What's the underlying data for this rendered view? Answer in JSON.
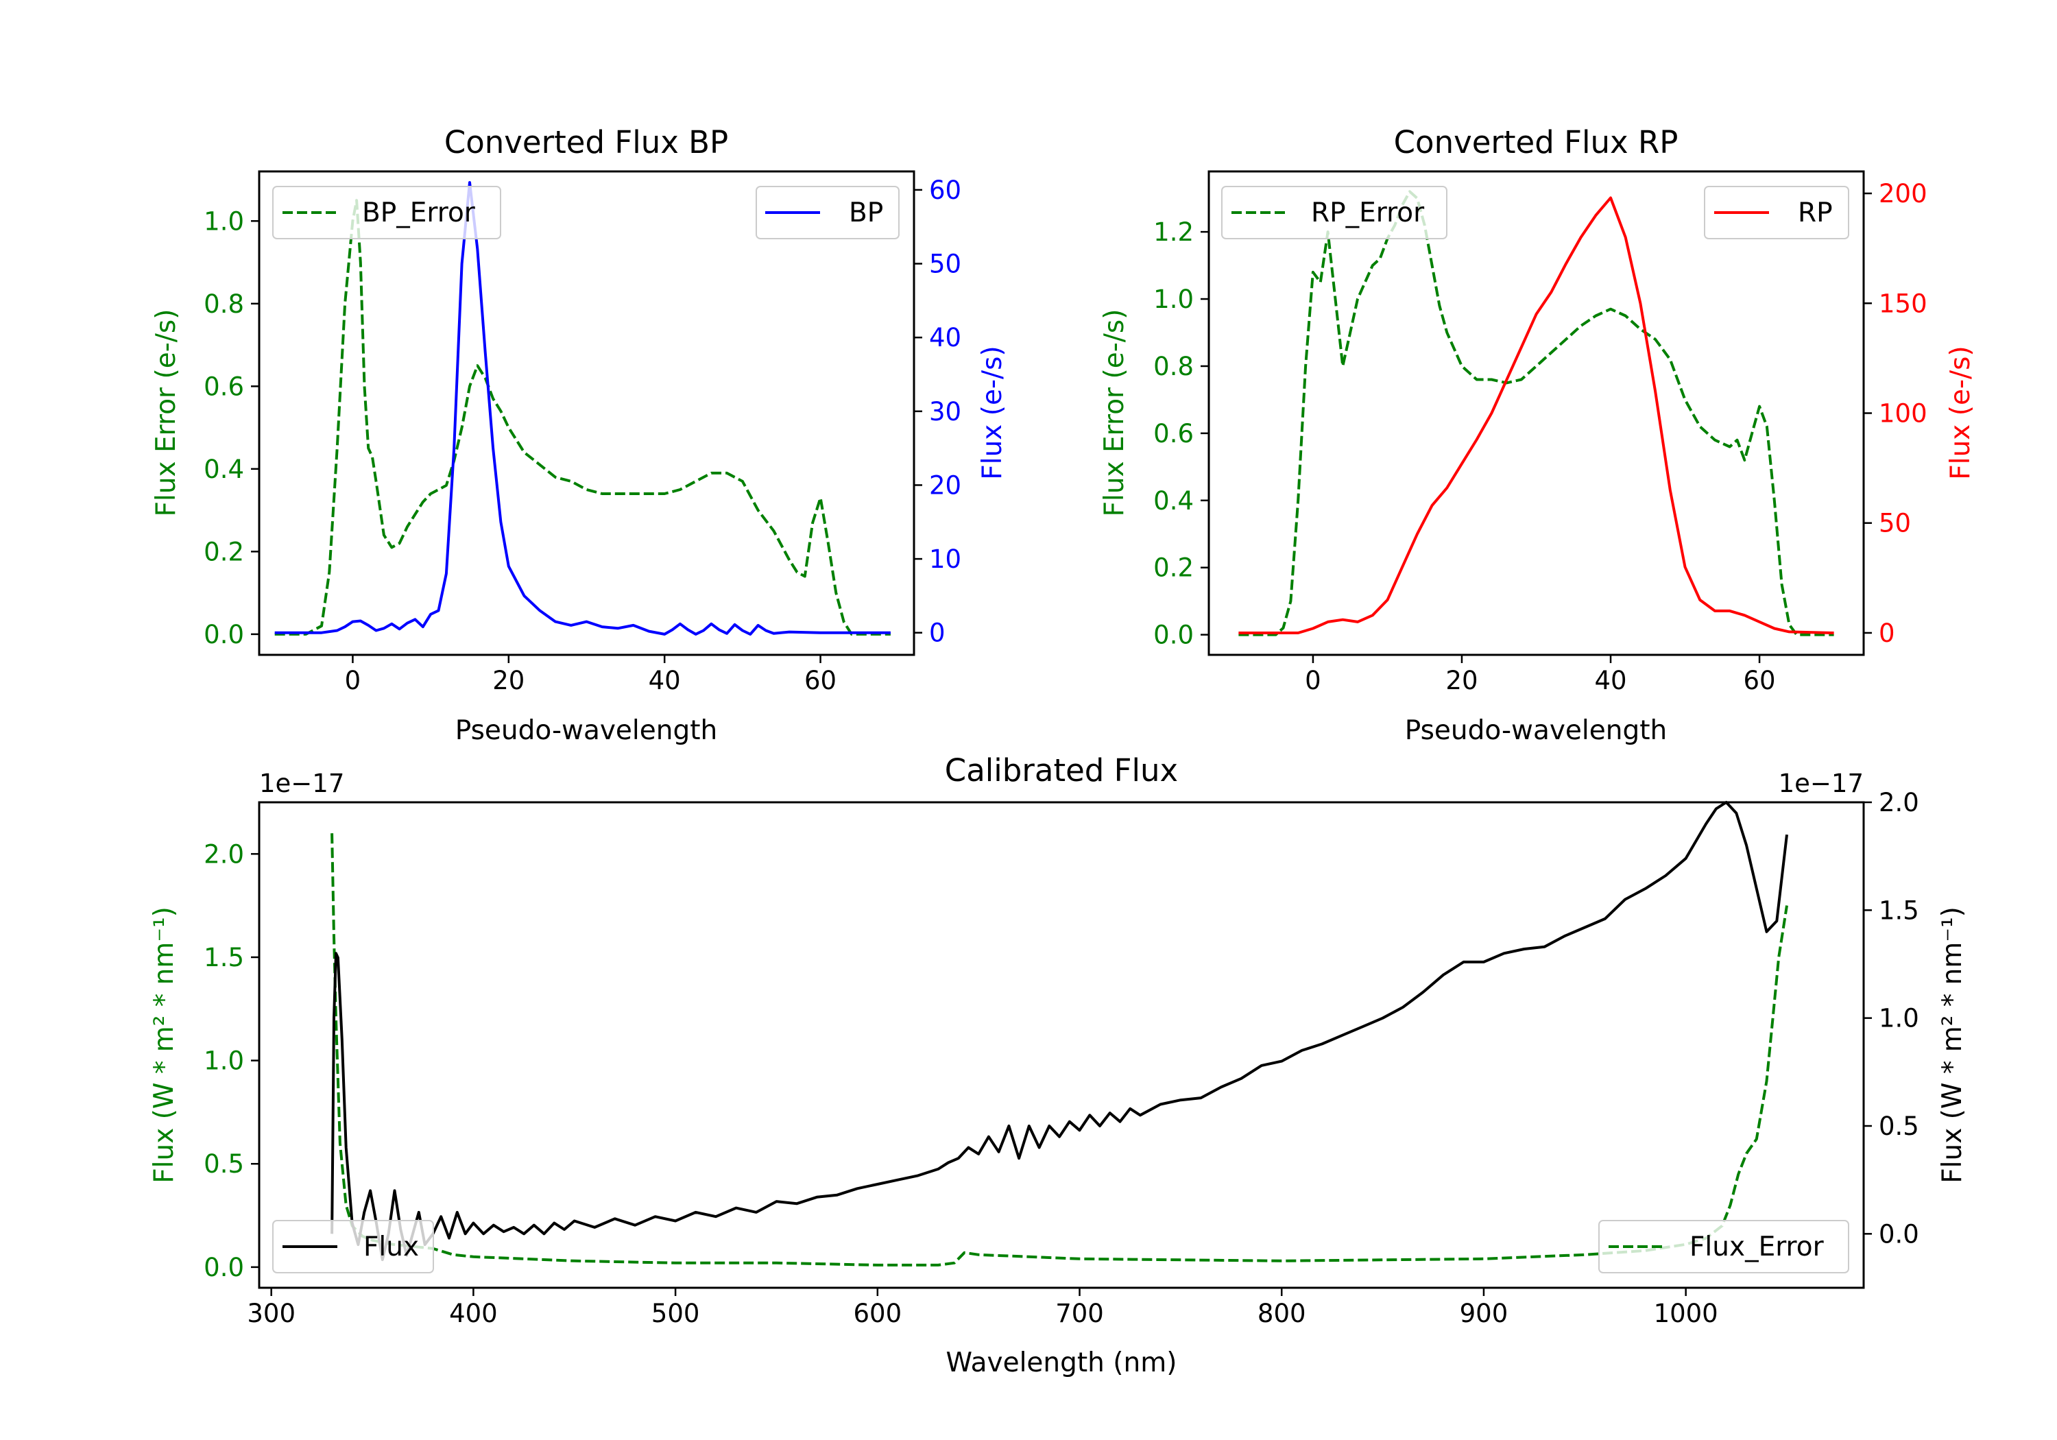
{
  "colors": {
    "bp": "#0000ff",
    "rp": "#ff0000",
    "error": "#008000",
    "flux": "#000000"
  },
  "chart_data": [
    {
      "type": "line",
      "title": "Converted Flux BP",
      "xlabel": "Pseudo-wavelength",
      "ylabel_left": "Flux Error (e-/s)",
      "ylabel_right": "Flux (e-/s)",
      "xlim": [
        -12,
        72
      ],
      "ylim_left": [
        -0.05,
        1.12
      ],
      "ylim_right": [
        -3,
        62.5
      ],
      "xticks": [
        "0",
        "20",
        "40",
        "60"
      ],
      "yticks_left": [
        "0.0",
        "0.2",
        "0.4",
        "0.6",
        "0.8",
        "1.0"
      ],
      "yticks_right": [
        "0",
        "10",
        "20",
        "30",
        "40",
        "50",
        "60"
      ],
      "series": [
        {
          "name": "BP_Error",
          "axis": "left",
          "style": "dashed",
          "color": "#008000",
          "x": [
            -10,
            -6,
            -4,
            -3,
            -2,
            -1,
            0,
            0.5,
            1,
            1.5,
            2,
            2.5,
            3,
            4,
            5,
            6,
            7,
            8,
            9,
            10,
            11,
            12,
            13,
            14,
            15,
            16,
            17,
            18,
            19,
            20,
            22,
            24,
            26,
            28,
            30,
            32,
            34,
            36,
            38,
            40,
            42,
            44,
            46,
            48,
            50,
            52,
            54,
            56,
            57,
            58,
            59,
            60,
            61,
            62,
            63,
            64,
            66,
            69
          ],
          "y": [
            0.0,
            0.0,
            0.02,
            0.15,
            0.45,
            0.8,
            1.0,
            1.05,
            0.9,
            0.6,
            0.45,
            0.43,
            0.37,
            0.24,
            0.21,
            0.22,
            0.26,
            0.29,
            0.32,
            0.34,
            0.35,
            0.36,
            0.42,
            0.5,
            0.6,
            0.65,
            0.62,
            0.57,
            0.54,
            0.5,
            0.44,
            0.41,
            0.38,
            0.37,
            0.35,
            0.34,
            0.34,
            0.34,
            0.34,
            0.34,
            0.35,
            0.37,
            0.39,
            0.39,
            0.37,
            0.3,
            0.25,
            0.18,
            0.15,
            0.14,
            0.27,
            0.33,
            0.22,
            0.1,
            0.03,
            0.0,
            0.0,
            0.0
          ]
        },
        {
          "name": "BP",
          "axis": "right",
          "style": "solid",
          "color": "#0000ff",
          "x": [
            -10,
            -6,
            -4,
            -2,
            -1,
            0,
            1,
            2,
            3,
            4,
            5,
            6,
            7,
            8,
            9,
            10,
            11,
            12,
            13,
            14,
            15,
            16,
            17,
            18,
            19,
            20,
            22,
            24,
            26,
            28,
            30,
            32,
            34,
            36,
            38,
            40,
            41,
            42,
            43,
            44,
            45,
            46,
            47,
            48,
            49,
            50,
            51,
            52,
            53,
            54,
            56,
            60,
            65,
            69
          ],
          "y": [
            0,
            0,
            0,
            0.3,
            0.8,
            1.5,
            1.6,
            1,
            0.3,
            0.6,
            1.2,
            0.5,
            1.3,
            1.8,
            0.8,
            2.5,
            3,
            8,
            25,
            50,
            61,
            52,
            38,
            25,
            15,
            9,
            5,
            3,
            1.5,
            1,
            1.5,
            0.8,
            0.6,
            1,
            0.2,
            -0.2,
            0.4,
            1.2,
            0.4,
            -0.2,
            0.3,
            1.2,
            0.4,
            -0.1,
            1.1,
            0.3,
            -0.2,
            1.0,
            0.3,
            -0.1,
            0.1,
            0.0,
            0.0,
            0.0
          ]
        }
      ],
      "legend": {
        "left": "BP_Error",
        "right": "BP"
      }
    },
    {
      "type": "line",
      "title": "Converted Flux RP",
      "xlabel": "Pseudo-wavelength",
      "ylabel_left": "Flux Error (e-/s)",
      "ylabel_right": "Flux (e-/s)",
      "xlim": [
        -14,
        74
      ],
      "ylim_left": [
        -0.06,
        1.38
      ],
      "ylim_right": [
        -10,
        210
      ],
      "xticks": [
        "0",
        "20",
        "40",
        "60"
      ],
      "yticks_left": [
        "0.0",
        "0.2",
        "0.4",
        "0.6",
        "0.8",
        "1.0",
        "1.2"
      ],
      "yticks_right": [
        "0",
        "50",
        "100",
        "150",
        "200"
      ],
      "series": [
        {
          "name": "RP_Error",
          "axis": "left",
          "style": "dashed",
          "color": "#008000",
          "x": [
            -10,
            -5,
            -4,
            -3,
            -2,
            -1,
            0,
            1,
            2,
            3,
            4,
            5,
            6,
            7,
            8,
            9,
            10,
            11,
            12,
            13,
            14,
            15,
            16,
            17,
            18,
            20,
            22,
            24,
            26,
            28,
            30,
            32,
            34,
            36,
            38,
            40,
            42,
            44,
            46,
            48,
            50,
            52,
            54,
            55,
            56,
            57,
            58,
            59,
            60,
            61,
            62,
            63,
            64,
            65,
            70
          ],
          "y": [
            0.0,
            0.0,
            0.02,
            0.1,
            0.4,
            0.8,
            1.08,
            1.05,
            1.2,
            1.0,
            0.8,
            0.9,
            1.0,
            1.05,
            1.1,
            1.12,
            1.18,
            1.22,
            1.28,
            1.32,
            1.3,
            1.22,
            1.1,
            0.98,
            0.9,
            0.8,
            0.76,
            0.76,
            0.75,
            0.76,
            0.8,
            0.84,
            0.88,
            0.92,
            0.95,
            0.97,
            0.95,
            0.91,
            0.88,
            0.82,
            0.7,
            0.62,
            0.58,
            0.57,
            0.56,
            0.58,
            0.52,
            0.6,
            0.68,
            0.62,
            0.4,
            0.15,
            0.03,
            0.0,
            0.0
          ]
        },
        {
          "name": "RP",
          "axis": "right",
          "style": "solid",
          "color": "#ff0000",
          "x": [
            -10,
            -5,
            -2,
            0,
            2,
            4,
            6,
            8,
            10,
            12,
            14,
            16,
            18,
            20,
            22,
            24,
            26,
            28,
            30,
            32,
            34,
            36,
            38,
            40,
            42,
            44,
            46,
            48,
            50,
            52,
            54,
            56,
            58,
            60,
            62,
            64,
            70
          ],
          "y": [
            0,
            0,
            0,
            2,
            5,
            6,
            5,
            8,
            15,
            30,
            45,
            58,
            66,
            77,
            88,
            100,
            115,
            130,
            145,
            155,
            168,
            180,
            190,
            198,
            180,
            150,
            110,
            65,
            30,
            15,
            10,
            10,
            8,
            5,
            2,
            0.5,
            0
          ]
        }
      ],
      "legend": {
        "left": "RP_Error",
        "right": "RP"
      }
    },
    {
      "type": "line",
      "title": "Calibrated Flux",
      "xlabel": "Wavelength (nm)",
      "ylabel_left": "Flux (W * m² * nm⁻¹)",
      "ylabel_right": "Flux (W * m² * nm⁻¹)",
      "offset_left": "1e−17",
      "offset_right": "1e−17",
      "xlim": [
        294,
        1088
      ],
      "ylim_left": [
        -0.1,
        2.25
      ],
      "ylim_right": [
        -0.25,
        2.0
      ],
      "xticks": [
        "300",
        "400",
        "500",
        "600",
        "700",
        "800",
        "900",
        "1000"
      ],
      "yticks_left": [
        "0.0",
        "0.5",
        "1.0",
        "1.5",
        "2.0"
      ],
      "yticks_right": [
        "0.0",
        "0.5",
        "1.0",
        "1.5",
        "2.0"
      ],
      "series": [
        {
          "name": "Flux_Error",
          "axis": "left",
          "style": "dashed",
          "color": "#008000",
          "x": [
            330,
            331,
            332,
            334,
            337,
            340,
            345,
            350,
            360,
            370,
            380,
            390,
            400,
            450,
            500,
            550,
            600,
            630,
            638,
            640,
            643,
            650,
            700,
            800,
            900,
            950,
            980,
            1000,
            1010,
            1018,
            1022,
            1026,
            1030,
            1035,
            1040,
            1043,
            1046,
            1050
          ],
          "y": [
            2.1,
            1.6,
            1.2,
            0.6,
            0.3,
            0.2,
            0.15,
            0.13,
            0.11,
            0.1,
            0.09,
            0.06,
            0.05,
            0.03,
            0.02,
            0.02,
            0.01,
            0.01,
            0.02,
            0.04,
            0.07,
            0.06,
            0.04,
            0.03,
            0.04,
            0.06,
            0.08,
            0.11,
            0.14,
            0.2,
            0.3,
            0.45,
            0.55,
            0.62,
            0.9,
            1.2,
            1.5,
            1.75
          ]
        },
        {
          "name": "Flux",
          "axis": "right",
          "style": "solid",
          "color": "#000000",
          "x": [
            330,
            331,
            332,
            333,
            335,
            337,
            340,
            343,
            346,
            349,
            352,
            355,
            358,
            361,
            364,
            367,
            370,
            373,
            376,
            380,
            384,
            388,
            392,
            396,
            400,
            405,
            410,
            415,
            420,
            425,
            430,
            435,
            440,
            445,
            450,
            460,
            470,
            480,
            490,
            500,
            510,
            520,
            530,
            540,
            550,
            560,
            570,
            580,
            590,
            600,
            610,
            620,
            630,
            635,
            640,
            645,
            650,
            655,
            660,
            665,
            670,
            675,
            680,
            685,
            690,
            695,
            700,
            705,
            710,
            715,
            720,
            725,
            730,
            740,
            750,
            760,
            770,
            780,
            790,
            800,
            810,
            820,
            830,
            840,
            850,
            860,
            870,
            880,
            890,
            900,
            910,
            920,
            930,
            940,
            950,
            960,
            970,
            980,
            990,
            1000,
            1005,
            1010,
            1015,
            1020,
            1025,
            1030,
            1035,
            1040,
            1045,
            1050
          ],
          "y": [
            0.0,
            1.0,
            1.3,
            1.28,
            0.9,
            0.4,
            0.05,
            -0.05,
            0.1,
            0.2,
            0.05,
            -0.12,
            0.0,
            0.2,
            0.02,
            -0.1,
            0.0,
            0.1,
            -0.05,
            0.0,
            0.08,
            -0.02,
            0.1,
            0.0,
            0.05,
            0.0,
            0.04,
            0.01,
            0.03,
            0.0,
            0.04,
            0.0,
            0.05,
            0.02,
            0.06,
            0.03,
            0.07,
            0.04,
            0.08,
            0.06,
            0.1,
            0.08,
            0.12,
            0.1,
            0.15,
            0.14,
            0.17,
            0.18,
            0.21,
            0.23,
            0.25,
            0.27,
            0.3,
            0.33,
            0.35,
            0.4,
            0.37,
            0.45,
            0.38,
            0.5,
            0.35,
            0.5,
            0.4,
            0.5,
            0.45,
            0.52,
            0.48,
            0.55,
            0.5,
            0.56,
            0.52,
            0.58,
            0.55,
            0.6,
            0.62,
            0.63,
            0.68,
            0.72,
            0.78,
            0.8,
            0.85,
            0.88,
            0.92,
            0.96,
            1.0,
            1.05,
            1.12,
            1.2,
            1.26,
            1.26,
            1.3,
            1.32,
            1.33,
            1.38,
            1.42,
            1.46,
            1.55,
            1.6,
            1.66,
            1.74,
            1.82,
            1.9,
            1.97,
            2.0,
            1.95,
            1.8,
            1.6,
            1.4,
            1.45,
            1.85
          ]
        }
      ],
      "legend": {
        "left": "Flux",
        "right": "Flux_Error"
      }
    }
  ]
}
